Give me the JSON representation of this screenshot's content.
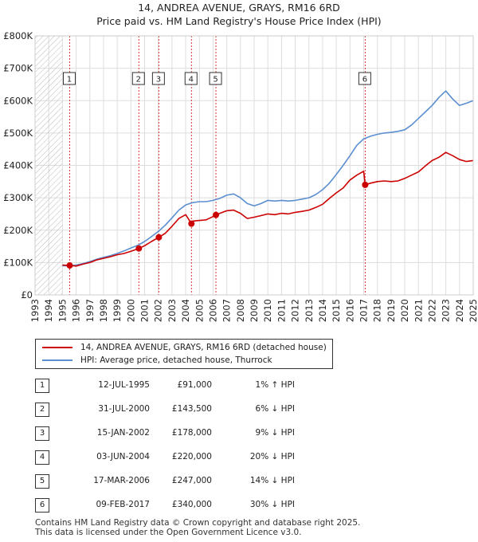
{
  "title": "14, ANDREA AVENUE, GRAYS, RM16 6RD",
  "subtitle": "Price paid vs. HM Land Registry's House Price Index (HPI)",
  "colors": {
    "property": "#cc0000",
    "hpi": "#5b8fd0",
    "grid": "#dddddd",
    "marker_line": "#cc0000"
  },
  "chart_data": {
    "type": "line",
    "title": "14, ANDREA AVENUE, GRAYS, RM16 6RD",
    "subtitle": "Price paid vs. HM Land Registry's House Price Index (HPI)",
    "xlim": [
      1993,
      2025
    ],
    "ylim": [
      0,
      800000
    ],
    "x_ticks": [
      "1993",
      "1994",
      "1995",
      "1996",
      "1997",
      "1998",
      "1999",
      "2000",
      "2001",
      "2002",
      "2003",
      "2004",
      "2005",
      "2006",
      "2007",
      "2008",
      "2009",
      "2010",
      "2011",
      "2012",
      "2013",
      "2014",
      "2015",
      "2016",
      "2017",
      "2018",
      "2019",
      "2020",
      "2021",
      "2022",
      "2023",
      "2024",
      "2025"
    ],
    "y_ticks": [
      {
        "value": 0,
        "label": "£0"
      },
      {
        "value": 100000,
        "label": "£100K"
      },
      {
        "value": 200000,
        "label": "£200K"
      },
      {
        "value": 300000,
        "label": "£300K"
      },
      {
        "value": 400000,
        "label": "£400K"
      },
      {
        "value": 500000,
        "label": "£500K"
      },
      {
        "value": 600000,
        "label": "£600K"
      },
      {
        "value": 700000,
        "label": "£700K"
      },
      {
        "value": 800000,
        "label": "£800K"
      }
    ],
    "grid": true,
    "hatched_before": 1995.0,
    "series": [
      {
        "name": "14, ANDREA AVENUE, GRAYS, RM16 6RD (detached house)",
        "color": "#cc0000",
        "x": [
          1995.0,
          1995.53,
          1996.0,
          1996.5,
          1997.0,
          1997.5,
          1998.0,
          1998.5,
          1999.0,
          1999.5,
          2000.0,
          2000.58,
          2001.0,
          2001.5,
          2002.04,
          2002.5,
          2003.0,
          2003.5,
          2004.0,
          2004.42,
          2004.5,
          2005.0,
          2005.5,
          2006.0,
          2006.21,
          2006.5,
          2007.0,
          2007.5,
          2008.0,
          2008.5,
          2009.0,
          2009.5,
          2010.0,
          2010.5,
          2011.0,
          2011.5,
          2012.0,
          2012.5,
          2013.0,
          2013.5,
          2014.0,
          2014.5,
          2015.0,
          2015.5,
          2016.0,
          2016.5,
          2017.0,
          2017.11,
          2017.5,
          2018.0,
          2018.5,
          2019.0,
          2019.5,
          2020.0,
          2020.5,
          2021.0,
          2021.5,
          2022.0,
          2022.5,
          2023.0,
          2023.5,
          2024.0,
          2024.5,
          2025.0
        ],
        "y": [
          92000,
          91000,
          89000,
          95000,
          100000,
          108000,
          113000,
          118000,
          124000,
          128000,
          135000,
          143500,
          152000,
          165000,
          178000,
          190000,
          212000,
          236000,
          248000,
          220000,
          228000,
          230000,
          232000,
          242000,
          247000,
          252000,
          260000,
          262000,
          252000,
          236000,
          240000,
          245000,
          250000,
          248000,
          252000,
          250000,
          255000,
          258000,
          262000,
          270000,
          280000,
          298000,
          315000,
          330000,
          355000,
          370000,
          382000,
          340000,
          345000,
          350000,
          352000,
          350000,
          352000,
          360000,
          370000,
          380000,
          398000,
          415000,
          425000,
          440000,
          430000,
          418000,
          412000,
          415000
        ]
      },
      {
        "name": "HPI: Average price, detached house, Thurrock",
        "color": "#5b8fd0",
        "x": [
          1995.0,
          1995.5,
          1996.0,
          1996.5,
          1997.0,
          1997.5,
          1998.0,
          1998.5,
          1999.0,
          1999.5,
          2000.0,
          2000.5,
          2001.0,
          2001.5,
          2002.0,
          2002.5,
          2003.0,
          2003.5,
          2004.0,
          2004.5,
          2005.0,
          2005.5,
          2006.0,
          2006.5,
          2007.0,
          2007.5,
          2008.0,
          2008.5,
          2009.0,
          2009.5,
          2010.0,
          2010.5,
          2011.0,
          2011.5,
          2012.0,
          2012.5,
          2013.0,
          2013.5,
          2014.0,
          2014.5,
          2015.0,
          2015.5,
          2016.0,
          2016.5,
          2017.0,
          2017.5,
          2018.0,
          2018.5,
          2019.0,
          2019.5,
          2020.0,
          2020.5,
          2021.0,
          2021.5,
          2022.0,
          2022.5,
          2023.0,
          2023.5,
          2024.0,
          2024.5,
          2025.0
        ],
        "y": [
          90000,
          90000,
          92000,
          97000,
          103000,
          110000,
          116000,
          121000,
          128000,
          136000,
          145000,
          153000,
          165000,
          180000,
          196000,
          215000,
          238000,
          262000,
          278000,
          285000,
          288000,
          288000,
          292000,
          298000,
          308000,
          312000,
          300000,
          282000,
          275000,
          282000,
          292000,
          290000,
          292000,
          290000,
          292000,
          296000,
          300000,
          310000,
          325000,
          345000,
          372000,
          400000,
          430000,
          462000,
          482000,
          490000,
          496000,
          500000,
          502000,
          505000,
          510000,
          525000,
          545000,
          565000,
          585000,
          610000,
          630000,
          605000,
          585000,
          592000,
          600000
        ]
      }
    ],
    "sales": [
      {
        "n": "1",
        "x": 1995.53,
        "date": "12-JUL-1995",
        "value": 91000,
        "price": "£91,000",
        "hpi": "1% ↑ HPI"
      },
      {
        "n": "2",
        "x": 2000.58,
        "date": "31-JUL-2000",
        "value": 143500,
        "price": "£143,500",
        "hpi": "6% ↓ HPI"
      },
      {
        "n": "3",
        "x": 2002.04,
        "date": "15-JAN-2002",
        "value": 178000,
        "price": "£178,000",
        "hpi": "9% ↓ HPI"
      },
      {
        "n": "4",
        "x": 2004.42,
        "date": "03-JUN-2004",
        "value": 220000,
        "price": "£220,000",
        "hpi": "20% ↓ HPI"
      },
      {
        "n": "5",
        "x": 2006.21,
        "date": "17-MAR-2006",
        "value": 247000,
        "price": "£247,000",
        "hpi": "14% ↓ HPI"
      },
      {
        "n": "6",
        "x": 2017.11,
        "date": "09-FEB-2017",
        "value": 340000,
        "price": "£340,000",
        "hpi": "30% ↓ HPI"
      }
    ],
    "legend": [
      "14, ANDREA AVENUE, GRAYS, RM16 6RD (detached house)",
      "HPI: Average price, detached house, Thurrock"
    ]
  },
  "footer": {
    "line1": "Contains HM Land Registry data © Crown copyright and database right 2025.",
    "line2": "This data is licensed under the Open Government Licence v3.0."
  }
}
